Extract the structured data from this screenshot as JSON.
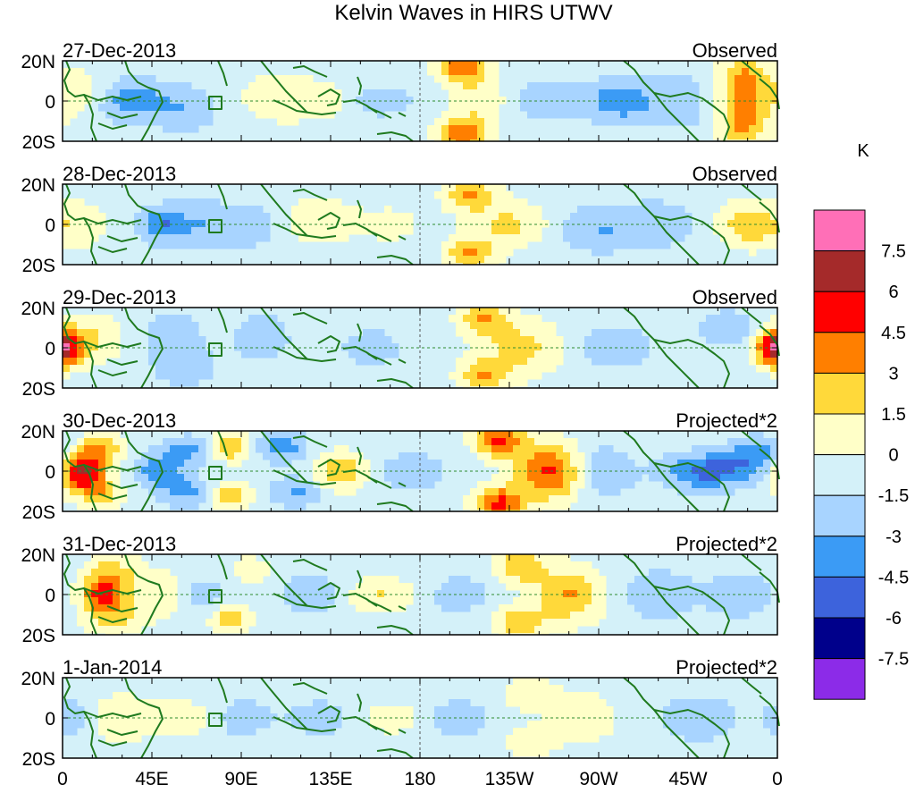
{
  "chart_data": {
    "type": "heatmap",
    "title": "Kelvin Waves in HIRS UTWV",
    "units": "K",
    "grid": false,
    "x_axis": {
      "range_deg_east": [
        0,
        360
      ],
      "ticks": [
        {
          "deg": 0,
          "label": "0"
        },
        {
          "deg": 45,
          "label": "45E"
        },
        {
          "deg": 90,
          "label": "90E"
        },
        {
          "deg": 135,
          "label": "135E"
        },
        {
          "deg": 180,
          "label": "180"
        },
        {
          "deg": 225,
          "label": "135W"
        },
        {
          "deg": 270,
          "label": "90W"
        },
        {
          "deg": 315,
          "label": "45W"
        },
        {
          "deg": 360,
          "label": "0"
        }
      ]
    },
    "y_axis": {
      "range_lat": [
        -20,
        20
      ],
      "ticks": [
        {
          "lat": 20,
          "label": "20N"
        },
        {
          "lat": 0,
          "label": "0"
        },
        {
          "lat": -20,
          "label": "20S"
        }
      ]
    },
    "colorbar": {
      "labels": [
        "7.5",
        "6",
        "4.5",
        "3",
        "1.5",
        "0",
        "-1.5",
        "-3",
        "-4.5",
        "-6",
        "-7.5"
      ],
      "colors": [
        "#ff6fb7",
        "#a52a2a",
        "#ff0000",
        "#ff7f00",
        "#ffd93a",
        "#ffffc8",
        "#d4f1f9",
        "#a8d4ff",
        "#3b9bf5",
        "#3d63dc",
        "#00008b",
        "#8c2be8"
      ]
    },
    "panels": [
      {
        "date": "27-Dec-2013",
        "label": "Observed",
        "blobs": [
          {
            "lon": 35,
            "lat": 0,
            "v": -3.2,
            "sx": 12,
            "sy": 7
          },
          {
            "lon": 62,
            "lat": -4,
            "v": -2.0,
            "sx": 10,
            "sy": 8
          },
          {
            "lon": 8,
            "lat": 5,
            "v": 1.8,
            "sx": 10,
            "sy": 8
          },
          {
            "lon": 110,
            "lat": 2,
            "v": 2.0,
            "sx": 14,
            "sy": 9
          },
          {
            "lon": 133,
            "lat": 0,
            "v": 1.6,
            "sx": 10,
            "sy": 6
          },
          {
            "lon": 160,
            "lat": 0,
            "v": -1.8,
            "sx": 12,
            "sy": 5
          },
          {
            "lon": 202,
            "lat": 17,
            "v": 5.2,
            "sx": 9,
            "sy": 6
          },
          {
            "lon": 202,
            "lat": -17,
            "v": 5.2,
            "sx": 9,
            "sy": 6
          },
          {
            "lon": 212,
            "lat": 0,
            "v": 2.2,
            "sx": 12,
            "sy": 8
          },
          {
            "lon": 240,
            "lat": 0,
            "v": -1.6,
            "sx": 16,
            "sy": 8
          },
          {
            "lon": 282,
            "lat": 0,
            "v": -3.4,
            "sx": 12,
            "sy": 7
          },
          {
            "lon": 315,
            "lat": 0,
            "v": -1.6,
            "sx": 12,
            "sy": 10
          },
          {
            "lon": 343,
            "lat": 0,
            "v": 3.8,
            "sx": 11,
            "sy": 8
          },
          {
            "lon": 343,
            "lat": 14,
            "v": 3.3,
            "sx": 9,
            "sy": 6
          },
          {
            "lon": 343,
            "lat": -14,
            "v": 3.3,
            "sx": 9,
            "sy": 6
          }
        ]
      },
      {
        "date": "28-Dec-2013",
        "label": "Observed",
        "blobs": [
          {
            "lon": 8,
            "lat": 0,
            "v": 1.8,
            "sx": 10,
            "sy": 9
          },
          {
            "lon": 50,
            "lat": 0,
            "v": -3.5,
            "sx": 8,
            "sy": 6
          },
          {
            "lon": 70,
            "lat": 0,
            "v": -2.0,
            "sx": 10,
            "sy": 8
          },
          {
            "lon": 95,
            "lat": 0,
            "v": -1.8,
            "sx": 10,
            "sy": 8
          },
          {
            "lon": 130,
            "lat": 2,
            "v": 2.0,
            "sx": 14,
            "sy": 8
          },
          {
            "lon": 165,
            "lat": 0,
            "v": 1.6,
            "sx": 10,
            "sy": 6
          },
          {
            "lon": 205,
            "lat": 15,
            "v": 3.8,
            "sx": 9,
            "sy": 6
          },
          {
            "lon": 205,
            "lat": -15,
            "v": 3.8,
            "sx": 9,
            "sy": 6
          },
          {
            "lon": 225,
            "lat": 0,
            "v": 2.6,
            "sx": 14,
            "sy": 8
          },
          {
            "lon": 270,
            "lat": -2,
            "v": -2.2,
            "sx": 14,
            "sy": 8
          },
          {
            "lon": 300,
            "lat": 0,
            "v": -1.8,
            "sx": 12,
            "sy": 8
          },
          {
            "lon": 345,
            "lat": 0,
            "v": 3.4,
            "sx": 10,
            "sy": 8
          }
        ]
      },
      {
        "date": "29-Dec-2013",
        "label": "Observed",
        "blobs": [
          {
            "lon": 2,
            "lat": 0,
            "v": 3.4,
            "sx": 8,
            "sy": 7
          },
          {
            "lon": 15,
            "lat": 5,
            "v": 2.0,
            "sx": 12,
            "sy": 9
          },
          {
            "lon": 55,
            "lat": 5,
            "v": -2.0,
            "sx": 10,
            "sy": 8
          },
          {
            "lon": 62,
            "lat": -10,
            "v": -1.8,
            "sx": 10,
            "sy": 6
          },
          {
            "lon": 100,
            "lat": 5,
            "v": -1.8,
            "sx": 10,
            "sy": 8
          },
          {
            "lon": 155,
            "lat": 0,
            "v": -1.8,
            "sx": 10,
            "sy": 6
          },
          {
            "lon": 212,
            "lat": 14,
            "v": 3.6,
            "sx": 9,
            "sy": 6
          },
          {
            "lon": 212,
            "lat": -14,
            "v": 3.6,
            "sx": 9,
            "sy": 6
          },
          {
            "lon": 232,
            "lat": 0,
            "v": 2.8,
            "sx": 14,
            "sy": 10
          },
          {
            "lon": 278,
            "lat": 0,
            "v": -1.6,
            "sx": 14,
            "sy": 8
          },
          {
            "lon": 335,
            "lat": 10,
            "v": -2.0,
            "sx": 10,
            "sy": 6
          },
          {
            "lon": 358,
            "lat": 0,
            "v": 5.0,
            "sx": 6,
            "sy": 6
          }
        ]
      },
      {
        "date": "30-Dec-2013",
        "label": "Projected*2",
        "blobs": [
          {
            "lon": 10,
            "lat": 0,
            "v": 7.4,
            "sx": 8,
            "sy": 7
          },
          {
            "lon": 20,
            "lat": 12,
            "v": 3.2,
            "sx": 8,
            "sy": 5
          },
          {
            "lon": 20,
            "lat": -12,
            "v": 3.2,
            "sx": 8,
            "sy": 5
          },
          {
            "lon": 48,
            "lat": 0,
            "v": -3.5,
            "sx": 8,
            "sy": 6
          },
          {
            "lon": 62,
            "lat": 10,
            "v": -2.8,
            "sx": 8,
            "sy": 5
          },
          {
            "lon": 62,
            "lat": -10,
            "v": -2.8,
            "sx": 8,
            "sy": 5
          },
          {
            "lon": 85,
            "lat": 12,
            "v": 3.6,
            "sx": 7,
            "sy": 5
          },
          {
            "lon": 85,
            "lat": -12,
            "v": 3.6,
            "sx": 7,
            "sy": 5
          },
          {
            "lon": 110,
            "lat": 12,
            "v": -3.2,
            "sx": 9,
            "sy": 5
          },
          {
            "lon": 118,
            "lat": -10,
            "v": -2.5,
            "sx": 9,
            "sy": 5
          },
          {
            "lon": 140,
            "lat": 0,
            "v": 3.4,
            "sx": 10,
            "sy": 7
          },
          {
            "lon": 175,
            "lat": 0,
            "v": -2.0,
            "sx": 12,
            "sy": 6
          },
          {
            "lon": 220,
            "lat": 16,
            "v": 5.5,
            "sx": 9,
            "sy": 6
          },
          {
            "lon": 220,
            "lat": -16,
            "v": 5.5,
            "sx": 9,
            "sy": 6
          },
          {
            "lon": 245,
            "lat": 0,
            "v": 5.6,
            "sx": 12,
            "sy": 10
          },
          {
            "lon": 272,
            "lat": 0,
            "v": -2.5,
            "sx": 10,
            "sy": 8
          },
          {
            "lon": 325,
            "lat": 0,
            "v": -4.6,
            "sx": 15,
            "sy": 6
          },
          {
            "lon": 350,
            "lat": 8,
            "v": -3.2,
            "sx": 10,
            "sy": 6
          }
        ]
      },
      {
        "date": "31-Dec-2013",
        "label": "Projected*2",
        "blobs": [
          {
            "lon": 20,
            "lat": 0,
            "v": 5.6,
            "sx": 8,
            "sy": 6
          },
          {
            "lon": 25,
            "lat": 12,
            "v": 2.5,
            "sx": 10,
            "sy": 6
          },
          {
            "lon": 25,
            "lat": -12,
            "v": 2.5,
            "sx": 10,
            "sy": 6
          },
          {
            "lon": 48,
            "lat": 0,
            "v": 1.8,
            "sx": 14,
            "sy": 9
          },
          {
            "lon": 70,
            "lat": 0,
            "v": -2.2,
            "sx": 8,
            "sy": 6
          },
          {
            "lon": 85,
            "lat": -12,
            "v": 3.6,
            "sx": 7,
            "sy": 5
          },
          {
            "lon": 95,
            "lat": 12,
            "v": 2.0,
            "sx": 7,
            "sy": 5
          },
          {
            "lon": 125,
            "lat": 0,
            "v": -2.0,
            "sx": 10,
            "sy": 7
          },
          {
            "lon": 160,
            "lat": 0,
            "v": 2.4,
            "sx": 12,
            "sy": 6
          },
          {
            "lon": 200,
            "lat": 0,
            "v": -1.8,
            "sx": 10,
            "sy": 6
          },
          {
            "lon": 230,
            "lat": 14,
            "v": 3.4,
            "sx": 9,
            "sy": 6
          },
          {
            "lon": 230,
            "lat": -14,
            "v": 3.4,
            "sx": 9,
            "sy": 6
          },
          {
            "lon": 255,
            "lat": 0,
            "v": 3.9,
            "sx": 12,
            "sy": 10
          },
          {
            "lon": 300,
            "lat": 0,
            "v": -2.0,
            "sx": 12,
            "sy": 8
          },
          {
            "lon": 340,
            "lat": 0,
            "v": -1.8,
            "sx": 12,
            "sy": 8
          }
        ]
      },
      {
        "date": "1-Jan-2014",
        "label": "Projected*2",
        "blobs": [
          {
            "lon": 5,
            "lat": 0,
            "v": -2.0,
            "sx": 8,
            "sy": 6
          },
          {
            "lon": 30,
            "lat": 0,
            "v": 2.2,
            "sx": 12,
            "sy": 8
          },
          {
            "lon": 60,
            "lat": 0,
            "v": 2.0,
            "sx": 12,
            "sy": 6
          },
          {
            "lon": 90,
            "lat": 0,
            "v": -1.8,
            "sx": 10,
            "sy": 6
          },
          {
            "lon": 130,
            "lat": 0,
            "v": -1.6,
            "sx": 12,
            "sy": 6
          },
          {
            "lon": 165,
            "lat": 0,
            "v": 1.6,
            "sx": 12,
            "sy": 6
          },
          {
            "lon": 200,
            "lat": 0,
            "v": -2.0,
            "sx": 10,
            "sy": 6
          },
          {
            "lon": 235,
            "lat": 12,
            "v": 1.8,
            "sx": 10,
            "sy": 6
          },
          {
            "lon": 235,
            "lat": -12,
            "v": 1.8,
            "sx": 10,
            "sy": 6
          },
          {
            "lon": 262,
            "lat": 0,
            "v": 2.0,
            "sx": 12,
            "sy": 9
          },
          {
            "lon": 320,
            "lat": 0,
            "v": -1.8,
            "sx": 14,
            "sy": 8
          }
        ]
      }
    ]
  }
}
